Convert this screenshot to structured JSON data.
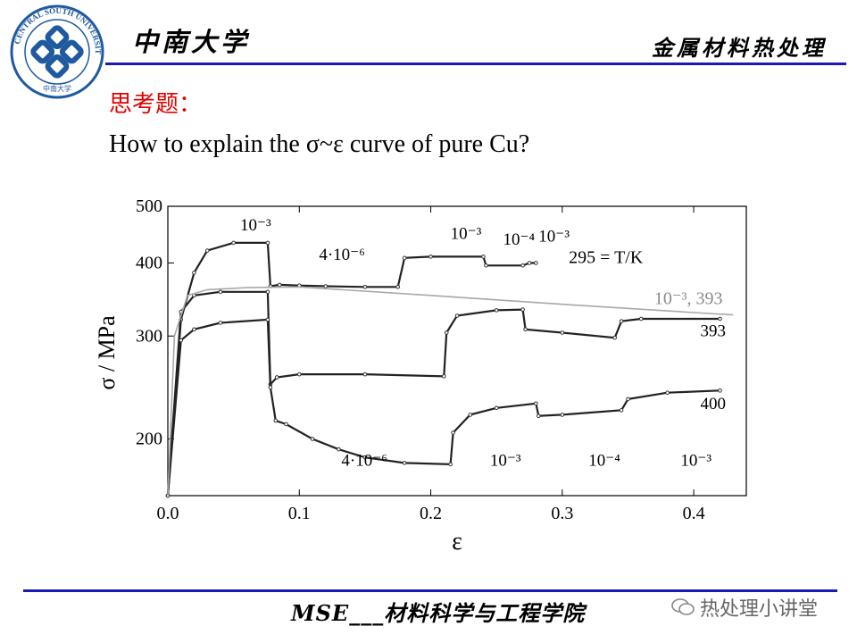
{
  "header": {
    "logo_text": "CENTRAL SOUTH UNIVERSITY",
    "logo_subtext": "中南大学",
    "left_title": "中南大学",
    "right_title": "金属材料热处理"
  },
  "question": {
    "title": "思考题：",
    "body": "How to explain the σ~ε curve of pure Cu?"
  },
  "colors": {
    "rule": "#1a1ab4",
    "question_title": "#e00000",
    "curve": "#222222",
    "curve_light": "#a8a8a8"
  },
  "chart_data": {
    "type": "line",
    "xlabel": "ε",
    "ylabel": "σ / MPa",
    "xlim": [
      0,
      0.44
    ],
    "ylim": [
      160,
      500
    ],
    "y_scale": "log",
    "x_ticks": [
      "0.0",
      "0.1",
      "0.2",
      "0.3",
      "0.4"
    ],
    "y_ticks": [
      "200",
      "300",
      "400",
      "500"
    ],
    "grid": false,
    "series": [
      {
        "name": "295 = T/K",
        "x": [
          0.0,
          0.01,
          0.02,
          0.03,
          0.05,
          0.076,
          0.078,
          0.085,
          0.1,
          0.12,
          0.15,
          0.175,
          0.18,
          0.2,
          0.24,
          0.242,
          0.27,
          0.275,
          0.28
        ],
        "y": [
          160,
          320,
          385,
          420,
          433,
          433,
          365,
          367,
          366,
          365,
          364,
          364,
          408,
          410,
          410,
          396,
          396,
          400,
          400
        ]
      },
      {
        "name": "393",
        "x": [
          0.0,
          0.01,
          0.02,
          0.04,
          0.076,
          0.078,
          0.083,
          0.1,
          0.15,
          0.21,
          0.212,
          0.22,
          0.25,
          0.27,
          0.272,
          0.3,
          0.34,
          0.345,
          0.36,
          0.42
        ],
        "y": [
          160,
          330,
          352,
          357,
          357,
          248,
          255,
          258,
          258,
          256,
          304,
          325,
          332,
          333,
          308,
          304,
          298,
          318,
          321,
          321
        ]
      },
      {
        "name": "400",
        "x": [
          0.0,
          0.01,
          0.02,
          0.04,
          0.076,
          0.078,
          0.082,
          0.09,
          0.11,
          0.13,
          0.15,
          0.18,
          0.215,
          0.217,
          0.23,
          0.25,
          0.28,
          0.282,
          0.3,
          0.345,
          0.35,
          0.38,
          0.42
        ],
        "y": [
          160,
          295,
          308,
          316,
          320,
          245,
          215,
          212,
          200,
          192,
          186,
          182,
          181,
          205,
          220,
          226,
          230,
          219,
          220,
          224,
          234,
          240,
          242
        ]
      },
      {
        "name": "10⁻³, 393",
        "x": [
          0.0,
          0.005,
          0.015,
          0.03,
          0.06,
          0.1,
          0.2,
          0.3,
          0.4,
          0.43
        ],
        "y": [
          160,
          300,
          352,
          360,
          363,
          364,
          352,
          340,
          329,
          326
        ]
      }
    ],
    "annotations": [
      {
        "text": "10⁻³",
        "x": 0.055,
        "y": 455
      },
      {
        "text": "4·10⁻⁶",
        "x": 0.115,
        "y": 405
      },
      {
        "text": "10⁻³",
        "x": 0.215,
        "y": 440
      },
      {
        "text": "10⁻⁴",
        "x": 0.255,
        "y": 430
      },
      {
        "text": "10⁻³",
        "x": 0.282,
        "y": 435
      },
      {
        "text": "295 = T/K",
        "x": 0.305,
        "y": 400
      },
      {
        "text": "10⁻³, 393",
        "x": 0.37,
        "y": 340
      },
      {
        "text": "393",
        "x": 0.405,
        "y": 300
      },
      {
        "text": "400",
        "x": 0.405,
        "y": 225
      },
      {
        "text": "4·10⁻⁶",
        "x": 0.132,
        "y": 180
      },
      {
        "text": "10⁻³",
        "x": 0.245,
        "y": 180
      },
      {
        "text": "10⁻⁴",
        "x": 0.32,
        "y": 180
      },
      {
        "text": "10⁻³",
        "x": 0.39,
        "y": 180
      }
    ]
  },
  "footer": {
    "text": "MSE___材料科学与工程学院",
    "watermark": "热处理小讲堂"
  }
}
